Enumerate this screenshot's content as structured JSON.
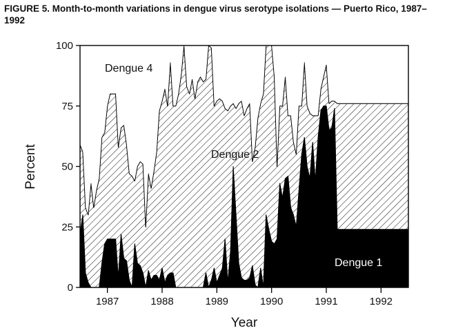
{
  "title": "FIGURE 5. Month-to-month variations in dengue virus serotype isolations — Puerto Rico, 1987–1992",
  "chart_data": {
    "type": "area",
    "stacked": true,
    "xlabel": "Year",
    "ylabel": "Percent",
    "ylim": [
      0,
      100
    ],
    "y_ticks": [
      "0",
      "25",
      "50",
      "75",
      "100"
    ],
    "x_tick_labels": [
      "1987",
      "1988",
      "1989",
      "1990",
      "1991",
      "1992"
    ],
    "xlim": [
      1986.5,
      1992.5
    ],
    "grid": false,
    "legend": "none (series labelled inside the plot)",
    "x": [
      1986.5,
      1986.55,
      1986.6,
      1986.65,
      1986.7,
      1986.75,
      1986.8,
      1986.85,
      1986.9,
      1986.95,
      1987.0,
      1987.05,
      1987.1,
      1987.15,
      1987.2,
      1987.25,
      1987.3,
      1987.35,
      1987.4,
      1987.45,
      1987.5,
      1987.55,
      1987.6,
      1987.65,
      1987.7,
      1987.75,
      1987.8,
      1987.85,
      1987.9,
      1987.95,
      1988.0,
      1988.05,
      1988.1,
      1988.15,
      1988.2,
      1988.25,
      1988.3,
      1988.35,
      1988.4,
      1988.45,
      1988.5,
      1988.55,
      1988.6,
      1988.65,
      1988.7,
      1988.75,
      1988.8,
      1988.85,
      1988.9,
      1988.95,
      1989.0,
      1989.05,
      1989.1,
      1989.15,
      1989.2,
      1989.25,
      1989.3,
      1989.35,
      1989.4,
      1989.45,
      1989.5,
      1989.55,
      1989.6,
      1989.65,
      1989.7,
      1989.75,
      1989.8,
      1989.85,
      1989.9,
      1989.95,
      1990.0,
      1990.05,
      1990.1,
      1990.15,
      1990.2,
      1990.25,
      1990.3,
      1990.35,
      1990.4,
      1990.45,
      1990.5,
      1990.55,
      1990.6,
      1990.65,
      1990.7,
      1990.75,
      1990.8,
      1990.85,
      1990.9,
      1990.95,
      1991.0,
      1991.05,
      1991.1,
      1991.15,
      1991.2,
      1991.25,
      1991.3,
      1991.35,
      1991.4,
      1991.45,
      1991.5,
      1991.55,
      1991.6,
      1991.65,
      1991.7,
      1991.75,
      1991.8,
      1991.85,
      1991.9,
      1991.95,
      1992.0,
      1992.05,
      1992.1,
      1992.15,
      1992.2,
      1992.25,
      1992.3,
      1992.35,
      1992.4,
      1992.45,
      1992.5
    ],
    "series": [
      {
        "name": "Dengue 1",
        "values": [
          22,
          30,
          6,
          2,
          0,
          0,
          0,
          0,
          10,
          18,
          20,
          20,
          20,
          20,
          4,
          22,
          12,
          11,
          3,
          0,
          18,
          10,
          9,
          6,
          0,
          7,
          3,
          5,
          5,
          3,
          8,
          2,
          5,
          6,
          6,
          0,
          0,
          0,
          0,
          0,
          0,
          0,
          0,
          0,
          0,
          0,
          6,
          0,
          3,
          8,
          2,
          5,
          8,
          20,
          2,
          15,
          50,
          30,
          10,
          4,
          3,
          3,
          4,
          9,
          1,
          0,
          8,
          0,
          30,
          24,
          19,
          18,
          20,
          43,
          37,
          45,
          46,
          33,
          30,
          25,
          40,
          55,
          62,
          50,
          45,
          60,
          44,
          62,
          73,
          75,
          75,
          65,
          66,
          74,
          24,
          24,
          24,
          24,
          24,
          24,
          24,
          24,
          24,
          24,
          24,
          24,
          24,
          24,
          24,
          24,
          24,
          24,
          24,
          24,
          24,
          24,
          24,
          24,
          24,
          24,
          24
        ]
      },
      {
        "name": "Dengue 2",
        "values": [
          37,
          26,
          27,
          28,
          43,
          33,
          40,
          45,
          52,
          46,
          55,
          60,
          60,
          60,
          54,
          44,
          55,
          48,
          44,
          46,
          26,
          40,
          43,
          45,
          25,
          40,
          38,
          43,
          51,
          70,
          69,
          80,
          70,
          87,
          69,
          75,
          80,
          88,
          100,
          83,
          80,
          86,
          78,
          85,
          87,
          85,
          80,
          100,
          96,
          67,
          75,
          73,
          69,
          54,
          71,
          60,
          26,
          44,
          66,
          73,
          68,
          71,
          72,
          43,
          57,
          70,
          68,
          80,
          70,
          76,
          81,
          69,
          30,
          32,
          38,
          42,
          25,
          38,
          30,
          30,
          35,
          20,
          31,
          25,
          27,
          11,
          27,
          9,
          9,
          12,
          17,
          11,
          11,
          3,
          52,
          52,
          52,
          52,
          52,
          52,
          52,
          52,
          52,
          52,
          52,
          52,
          52,
          52,
          52,
          52,
          52,
          52,
          52,
          52,
          52,
          52,
          52,
          52,
          52,
          52,
          52
        ]
      },
      {
        "name": "Dengue 4",
        "values": [
          41,
          44,
          67,
          70,
          57,
          67,
          60,
          55,
          38,
          36,
          25,
          20,
          20,
          20,
          42,
          34,
          33,
          41,
          53,
          54,
          56,
          50,
          48,
          49,
          75,
          53,
          59,
          52,
          44,
          27,
          23,
          18,
          25,
          7,
          25,
          25,
          20,
          12,
          0,
          17,
          20,
          14,
          22,
          15,
          13,
          15,
          14,
          0,
          1,
          25,
          23,
          22,
          23,
          26,
          27,
          25,
          24,
          26,
          24,
          23,
          29,
          26,
          24,
          48,
          42,
          30,
          24,
          20,
          0,
          0,
          0,
          13,
          50,
          25,
          25,
          13,
          29,
          29,
          40,
          45,
          25,
          25,
          7,
          25,
          28,
          29,
          29,
          29,
          18,
          13,
          8,
          24,
          23,
          23,
          24,
          24,
          24,
          24,
          24,
          24,
          24,
          24,
          24,
          24,
          24,
          24,
          24,
          24,
          24,
          24,
          24,
          24,
          24,
          24,
          24,
          24,
          24,
          24,
          24,
          24,
          24
        ]
      }
    ],
    "annotations": [
      "Dengue 4",
      "Dengue 2",
      "Dengue 1"
    ]
  }
}
